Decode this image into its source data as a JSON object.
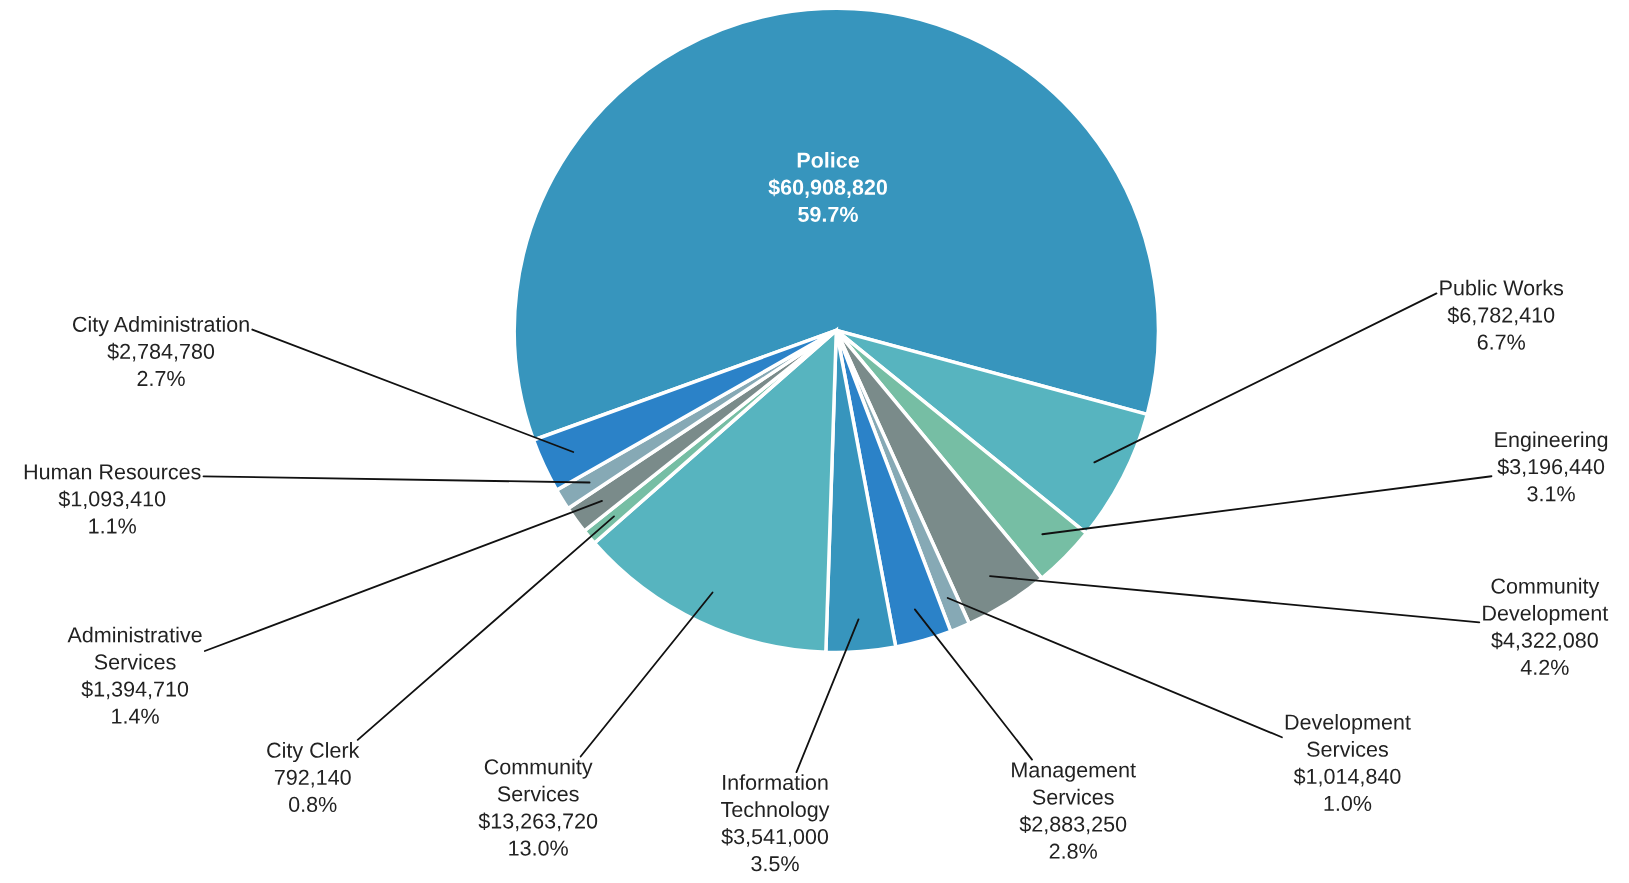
{
  "chart_data": {
    "type": "pie",
    "categories": [
      "Police",
      "Public Works",
      "Engineering",
      "Community Development",
      "Development Services",
      "Management Services",
      "Information Technology",
      "Community Services",
      "City Clerk",
      "Administrative Services",
      "Human Resources",
      "City Administration"
    ],
    "values": [
      60908820,
      6782410,
      3196440,
      4322080,
      1014840,
      2883250,
      3541000,
      13263720,
      792140,
      1394710,
      1093410,
      2784780
    ],
    "value_labels": [
      "$60,908,820\n59.7%",
      "$6,782,410\n6.7%",
      "$3,196,440\n3.1%",
      "$4,322,080\n4.2%",
      "$1,014,840\n1.0%",
      "$2,883,250\n2.8%",
      "$3,541,000\n3.5%",
      "$13,263,720\n13.0%",
      "792,140\n0.8%",
      "$1,394,710\n1.4%",
      "$1,093,410\n1.1%",
      "$2,784,780\n2.7%"
    ],
    "colors": [
      "#3795bd",
      "#57b4bf",
      "#76bea4",
      "#7a8b8a",
      "#86a9b5",
      "#2b82c8",
      "#3795bd",
      "#57b4bf",
      "#76bea4",
      "#7a8b8a",
      "#86a9b5",
      "#2b82c8"
    ]
  }
}
